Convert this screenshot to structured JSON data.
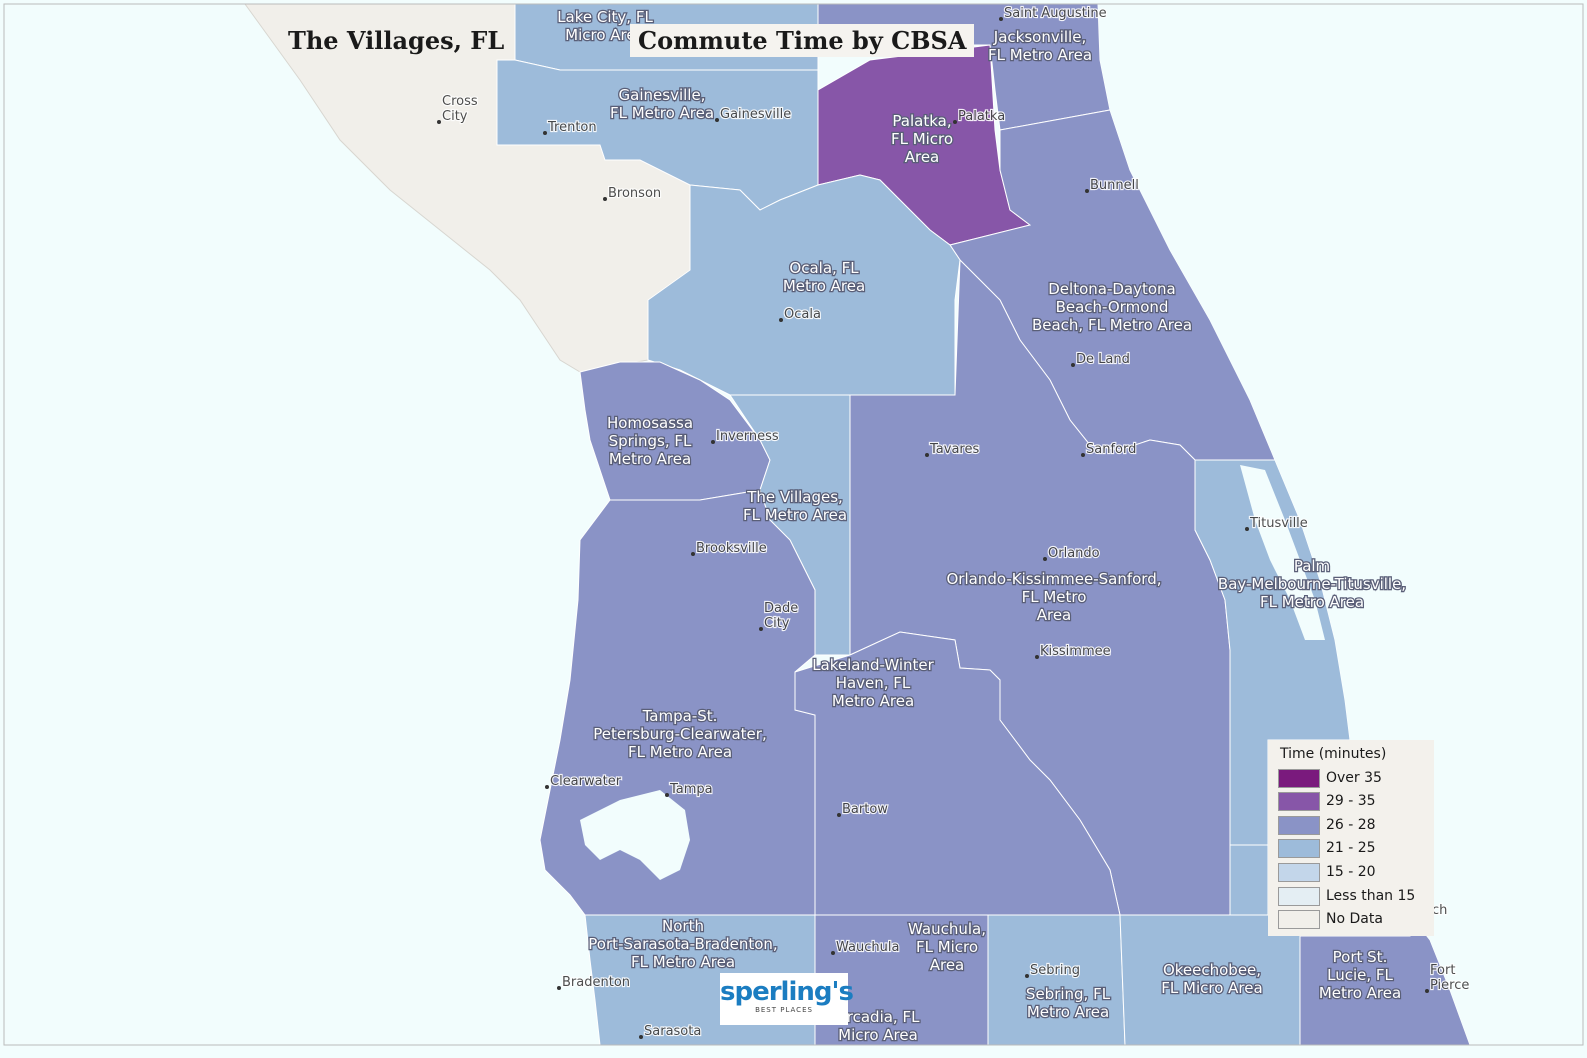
{
  "map": {
    "title_left": "The Villages, FL",
    "title_right": "Commute Time by CBSA",
    "colors": {
      "water": "#f2fdfd",
      "no_data_land": "#f1efea",
      "over_35": "#7a1a7d",
      "c29_35": "#8756a8",
      "c26_28": "#8a93c6",
      "c21_25": "#9dbbda",
      "c15_20": "#c3d6ea",
      "lt15": "#e4eef3"
    },
    "area_labels": [
      {
        "name": "area-lake-city",
        "lines": [
          "Lake City, FL",
          "Micro Area"
        ]
      },
      {
        "name": "area-jacksonville",
        "lines": [
          "Jacksonville,",
          "FL Metro Area"
        ]
      },
      {
        "name": "area-gainesville",
        "lines": [
          "Gainesville,",
          "FL Metro Area"
        ]
      },
      {
        "name": "area-palatka",
        "lines": [
          "Palatka,",
          "FL Micro",
          "Area"
        ]
      },
      {
        "name": "area-ocala",
        "lines": [
          "Ocala, FL",
          "Metro Area"
        ]
      },
      {
        "name": "area-deltona",
        "lines": [
          "Deltona-Daytona",
          "Beach-Ormond",
          "Beach, FL Metro Area"
        ]
      },
      {
        "name": "area-homosassa",
        "lines": [
          "Homosassa",
          "Springs, FL",
          "Metro Area"
        ]
      },
      {
        "name": "area-the-villages",
        "lines": [
          "The Villages,",
          "FL Metro Area"
        ]
      },
      {
        "name": "area-orlando",
        "lines": [
          "Orlando-Kissimmee-Sanford,",
          "FL Metro",
          "Area"
        ]
      },
      {
        "name": "area-palm-bay",
        "lines": [
          "Palm",
          "Bay-Melbourne-Titusville,",
          "FL Metro Area"
        ]
      },
      {
        "name": "area-lakeland",
        "lines": [
          "Lakeland-Winter",
          "Haven, FL",
          "Metro Area"
        ]
      },
      {
        "name": "area-tampa",
        "lines": [
          "Tampa-St.",
          "Petersburg-Clearwater,",
          "FL Metro Area"
        ]
      },
      {
        "name": "area-north-port",
        "lines": [
          "North",
          "Port-Sarasota-Bradenton,",
          "FL Metro Area"
        ]
      },
      {
        "name": "area-wauchula",
        "lines": [
          "Wauchula,",
          "FL Micro",
          "Area"
        ]
      },
      {
        "name": "area-sebring",
        "lines": [
          "Sebring, FL",
          "Metro Area"
        ]
      },
      {
        "name": "area-okeechobee",
        "lines": [
          "Okeechobee,",
          "FL Micro Area"
        ]
      },
      {
        "name": "area-port-st-lucie",
        "lines": [
          "Port St.",
          "Lucie, FL",
          "Metro Area"
        ]
      },
      {
        "name": "area-arcadia",
        "lines": [
          "Arcadia, FL",
          "Micro Area"
        ]
      }
    ],
    "city_labels": [
      {
        "name": "city-saint-augustine",
        "lines": [
          "Saint Augustine"
        ]
      },
      {
        "name": "city-cross-city",
        "lines": [
          "Cross",
          "City"
        ]
      },
      {
        "name": "city-trenton",
        "lines": [
          "Trenton"
        ]
      },
      {
        "name": "city-gainesville",
        "lines": [
          "Gainesville"
        ]
      },
      {
        "name": "city-palatka",
        "lines": [
          "Palatka"
        ]
      },
      {
        "name": "city-bronson",
        "lines": [
          "Bronson"
        ]
      },
      {
        "name": "city-bunnell",
        "lines": [
          "Bunnell"
        ]
      },
      {
        "name": "city-ocala",
        "lines": [
          "Ocala"
        ]
      },
      {
        "name": "city-de-land",
        "lines": [
          "De Land"
        ]
      },
      {
        "name": "city-inverness",
        "lines": [
          "Inverness"
        ]
      },
      {
        "name": "city-tavares",
        "lines": [
          "Tavares"
        ]
      },
      {
        "name": "city-sanford",
        "lines": [
          "Sanford"
        ]
      },
      {
        "name": "city-titusville",
        "lines": [
          "Titusville"
        ]
      },
      {
        "name": "city-brooksville",
        "lines": [
          "Brooksville"
        ]
      },
      {
        "name": "city-orlando",
        "lines": [
          "Orlando"
        ]
      },
      {
        "name": "city-dade-city",
        "lines": [
          "Dade",
          "City"
        ]
      },
      {
        "name": "city-kissimmee",
        "lines": [
          "Kissimmee"
        ]
      },
      {
        "name": "city-clearwater",
        "lines": [
          "Clearwater"
        ]
      },
      {
        "name": "city-tampa",
        "lines": [
          "Tampa"
        ]
      },
      {
        "name": "city-bartow",
        "lines": [
          "Bartow"
        ]
      },
      {
        "name": "city-wauchula",
        "lines": [
          "Wauchula"
        ]
      },
      {
        "name": "city-sebring",
        "lines": [
          "Sebring"
        ]
      },
      {
        "name": "city-bradenton",
        "lines": [
          "Bradenton"
        ]
      },
      {
        "name": "city-sarasota",
        "lines": [
          "Sarasota"
        ]
      },
      {
        "name": "city-fort-pierce",
        "lines": [
          "Fort",
          "Pierce"
        ]
      },
      {
        "name": "city-vero-beach",
        "lines": [
          "ch"
        ]
      }
    ]
  },
  "legend": {
    "title": "Time (minutes)",
    "items": [
      {
        "label": "Over 35",
        "color": "#7a1a7d"
      },
      {
        "label": "29 - 35",
        "color": "#8756a8"
      },
      {
        "label": "26 - 28",
        "color": "#8a93c6"
      },
      {
        "label": "21 - 25",
        "color": "#9dbbda"
      },
      {
        "label": "15 - 20",
        "color": "#c3d6ea"
      },
      {
        "label": "Less than 15",
        "color": "#e4eef3"
      },
      {
        "label": "No Data",
        "color": "#f1efea"
      }
    ]
  },
  "logo": {
    "word": "sperling's",
    "sub": "BEST PLACES"
  }
}
